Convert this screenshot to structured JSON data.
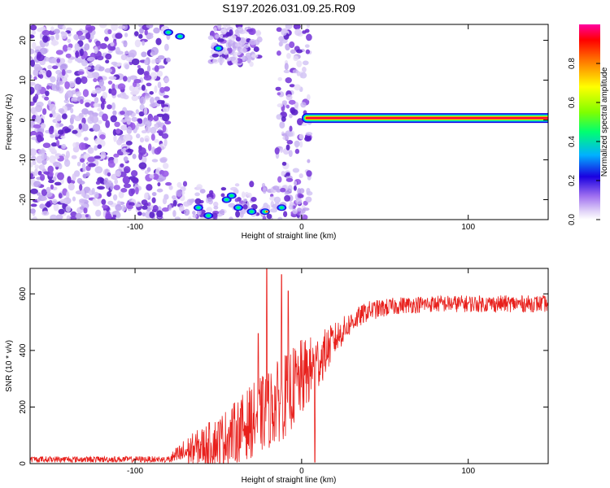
{
  "figure_title": "S197.2026.031.09.25.R09",
  "chart_data": [
    {
      "type": "heatmap",
      "xlabel": "Height of straight line (km)",
      "ylabel": "Frequency (Hz)",
      "xlim": [
        -163,
        148
      ],
      "ylim": [
        -25,
        24
      ],
      "xticks": [
        -100,
        0,
        100
      ],
      "xtick_labels": [
        "-100",
        "0",
        "100"
      ],
      "yticks": [
        -20,
        -10,
        0,
        10,
        20
      ],
      "ytick_labels": [
        "-20",
        "-10",
        "0",
        "10",
        "20"
      ],
      "colorbar": {
        "label": "Normalized spectral amplitude",
        "range": [
          0,
          1
        ],
        "ticks": [
          0.0,
          0.2,
          0.4,
          0.6,
          0.8
        ],
        "tick_labels": [
          "0.0",
          "0.2",
          "0.4",
          "0.6",
          "0.8"
        ],
        "colors": [
          "#ffffff",
          "#c8b4f0",
          "#6a2bd6",
          "#1a1aff",
          "#00c8ff",
          "#00ff80",
          "#80ff00",
          "#ffff00",
          "#ff8000",
          "#ff0000",
          "#ff00a0"
        ]
      },
      "noise_regions": [
        {
          "x": [
            -163,
            -80
          ],
          "y": [
            -25,
            24
          ],
          "description": "dense weak noise"
        },
        {
          "x": [
            -80,
            5
          ],
          "y": [
            -25,
            24
          ],
          "description": "sparse noise with strong blobs near ±20 Hz"
        }
      ],
      "signal_line": {
        "x": [
          3,
          148
        ],
        "frequency": 0.5,
        "peak_amplitude": 1.0
      }
    },
    {
      "type": "line",
      "xlabel": "Height of straight line (km)",
      "ylabel": "SNR (10 * v/v)",
      "xlim": [
        -163,
        148
      ],
      "ylim": [
        0,
        690
      ],
      "xticks": [
        -100,
        0,
        100
      ],
      "xtick_labels": [
        "-100",
        "0",
        "100"
      ],
      "yticks": [
        0,
        200,
        400,
        600
      ],
      "ytick_labels": [
        "0",
        "200",
        "400",
        "600"
      ],
      "color": "#e8201c",
      "profile": {
        "x": [
          -163,
          -80,
          -70,
          -60,
          -50,
          -40,
          -30,
          -20,
          -10,
          0,
          10,
          20,
          30,
          40,
          60,
          80,
          100,
          120,
          148
        ],
        "mean": [
          12,
          14,
          40,
          60,
          80,
          110,
          150,
          190,
          240,
          300,
          360,
          440,
          500,
          540,
          560,
          565,
          565,
          565,
          565
        ],
        "spread": [
          12,
          14,
          50,
          70,
          90,
          110,
          130,
          140,
          150,
          140,
          100,
          60,
          40,
          35,
          30,
          30,
          30,
          30,
          30
        ]
      },
      "spikes": [
        {
          "x": -21,
          "y": 690
        },
        {
          "x": -12,
          "y": 668
        },
        {
          "x": -8,
          "y": 610
        },
        {
          "x": -26,
          "y": 460
        },
        {
          "x": 8,
          "y": 5
        }
      ],
      "peak_value": 690,
      "plateau_value": 560
    }
  ]
}
